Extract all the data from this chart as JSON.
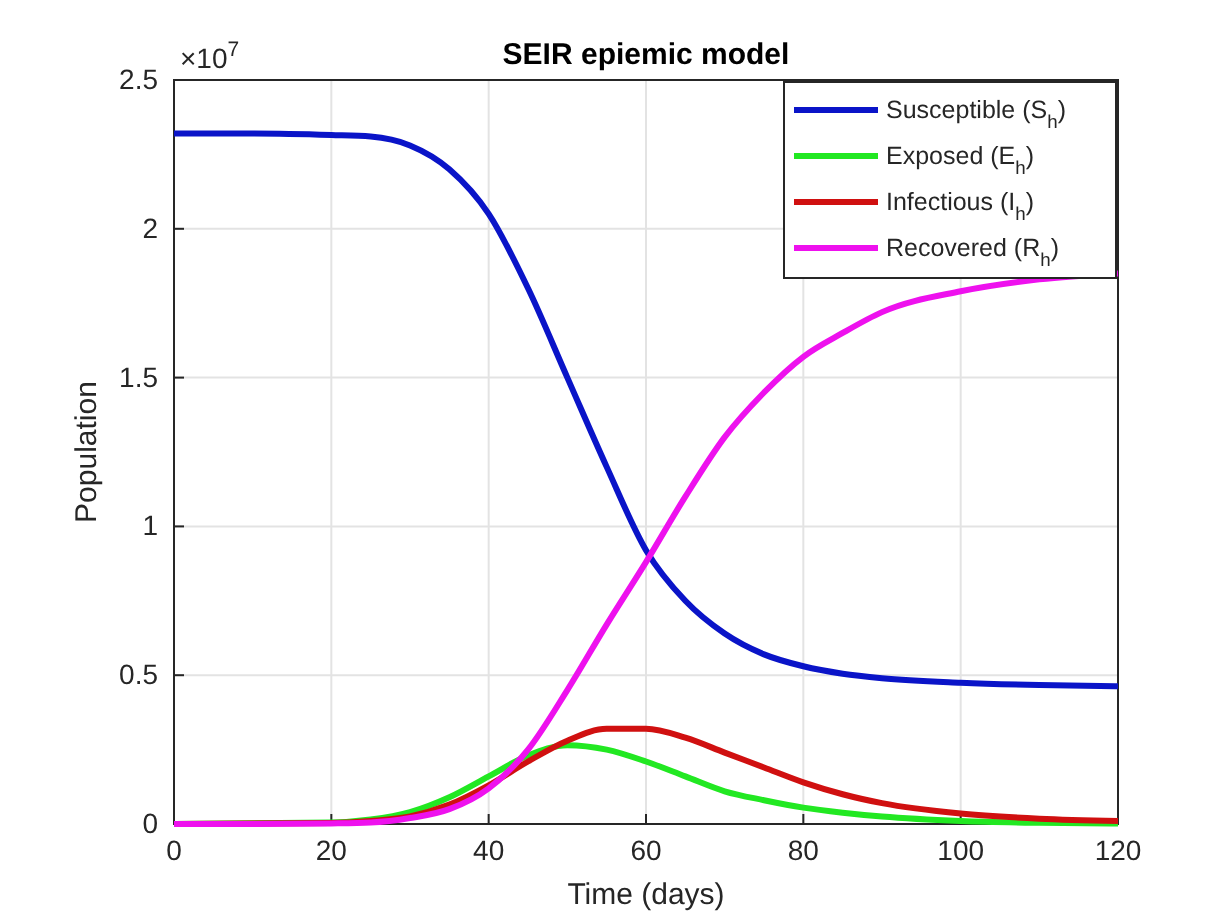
{
  "chart_data": {
    "type": "line",
    "title": "SEIR epiemic model",
    "xlabel": "Time (days)",
    "ylabel": "Population",
    "annotations": [
      "×10$^{7}$"
    ],
    "x": [
      0,
      10,
      20,
      25,
      30,
      35,
      40,
      45,
      50,
      55,
      60,
      65,
      70,
      75,
      80,
      85,
      90,
      100,
      110,
      120
    ],
    "series": [
      {
        "name": "Susceptible (S$_{h}$)",
        "color": "#0a14c8",
        "values": [
          2.32,
          2.32,
          2.315,
          2.31,
          2.28,
          2.2,
          2.05,
          1.8,
          1.5,
          1.2,
          0.92,
          0.75,
          0.64,
          0.57,
          0.53,
          0.505,
          0.49,
          0.475,
          0.467,
          0.463
        ]
      },
      {
        "name": "Exposed (E$_{h}$)",
        "color": "#22e822",
        "x": [
          0,
          20,
          25,
          30,
          35,
          40,
          45,
          50,
          55,
          60,
          65,
          70,
          75,
          80,
          85,
          90,
          100,
          110,
          120
        ],
        "values": [
          0,
          0.005,
          0.015,
          0.04,
          0.09,
          0.16,
          0.23,
          0.265,
          0.25,
          0.21,
          0.16,
          0.11,
          0.08,
          0.055,
          0.038,
          0.025,
          0.01,
          0.004,
          0.002
        ]
      },
      {
        "name": "Infectious (I$_{h}$)",
        "color": "#d01010",
        "x": [
          0,
          20,
          25,
          30,
          35,
          40,
          45,
          50,
          55,
          60,
          65,
          70,
          75,
          80,
          85,
          90,
          100,
          110,
          120
        ],
        "values": [
          0,
          0.003,
          0.01,
          0.025,
          0.065,
          0.13,
          0.21,
          0.28,
          0.32,
          0.32,
          0.29,
          0.24,
          0.19,
          0.14,
          0.1,
          0.07,
          0.035,
          0.018,
          0.01
        ]
      },
      {
        "name": "Recovered (R$_{h}$)",
        "color": "#ee11ee",
        "values": [
          0,
          0,
          0.002,
          0.005,
          0.02,
          0.05,
          0.12,
          0.25,
          0.45,
          0.67,
          0.88,
          1.1,
          1.3,
          1.45,
          1.57,
          1.65,
          1.72,
          1.79,
          1.83,
          1.85
        ]
      }
    ],
    "xlim": [
      0,
      120
    ],
    "xticks": [
      0,
      20,
      40,
      60,
      80,
      100,
      120
    ],
    "ylim": [
      0,
      2.5
    ],
    "yticks": [
      0,
      0.5,
      1,
      1.5,
      2,
      2.5
    ],
    "grid": true,
    "legend": "top right",
    "line_style": "solid",
    "marker": "none"
  }
}
